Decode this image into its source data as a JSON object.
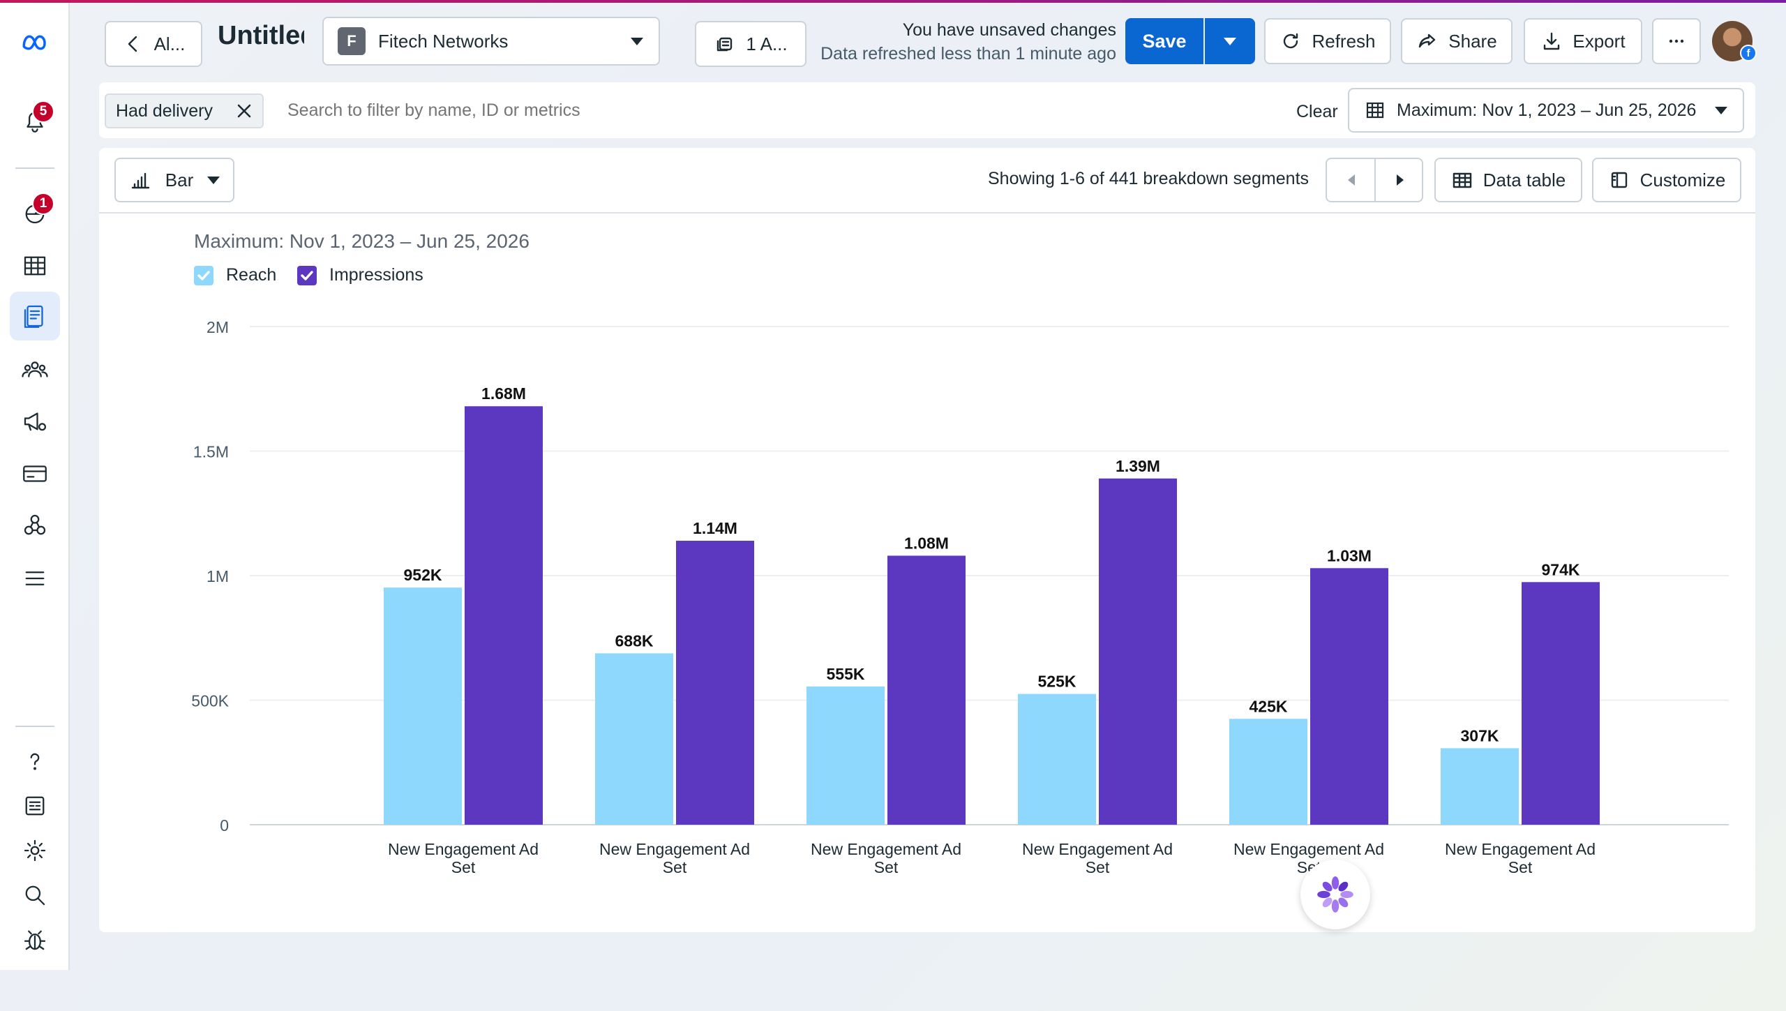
{
  "header": {
    "back_label": "Al...",
    "title": "Untitled",
    "account": {
      "letter": "F",
      "name": "Fitech Networks"
    },
    "ad_accounts_label": "1 A...",
    "status_main": "You have unsaved changes",
    "status_sub": "Data refreshed less than 1 minute ago",
    "save_label": "Save",
    "refresh_label": "Refresh",
    "share_label": "Share",
    "export_label": "Export"
  },
  "sidebar": {
    "notifications_badge": "5",
    "reports_badge": "1"
  },
  "filters": {
    "chip_label": "Had delivery",
    "search_placeholder": "Search to filter by name, ID or metrics",
    "clear_label": "Clear",
    "date_range": "Maximum: Nov 1, 2023 – Jun 25, 2026"
  },
  "toolbar": {
    "chart_type_label": "Bar",
    "showing_text": "Showing 1-6 of 441 breakdown segments",
    "data_table_label": "Data table",
    "customize_label": "Customize"
  },
  "colors": {
    "reach": "#8dd8fc",
    "impressions": "#5c38c0",
    "primary": "#0a66d1"
  },
  "chart_data": {
    "type": "bar",
    "title": "Maximum: Nov 1, 2023 – Jun 25, 2026",
    "categories": [
      "New Engagement Ad Set",
      "New Engagement Ad Set",
      "New Engagement Ad Set",
      "New Engagement Ad Set",
      "New Engagement Ad Set",
      "New Engagement Ad Set"
    ],
    "series": [
      {
        "name": "Reach",
        "values": [
          952000,
          688000,
          555000,
          525000,
          425000,
          307000
        ],
        "labels": [
          "952K",
          "688K",
          "555K",
          "525K",
          "425K",
          "307K"
        ]
      },
      {
        "name": "Impressions",
        "values": [
          1680000,
          1140000,
          1080000,
          1390000,
          1030000,
          974000
        ],
        "labels": [
          "1.68M",
          "1.14M",
          "1.08M",
          "1.39M",
          "1.03M",
          "974K"
        ]
      }
    ],
    "yticks": [
      {
        "value": 0,
        "label": "0"
      },
      {
        "value": 500000,
        "label": "500K"
      },
      {
        "value": 1000000,
        "label": "1M"
      },
      {
        "value": 1500000,
        "label": "1.5M"
      },
      {
        "value": 2000000,
        "label": "2M"
      }
    ],
    "ylim": [
      0,
      2000000
    ],
    "grid": true,
    "legend": "top-left"
  }
}
